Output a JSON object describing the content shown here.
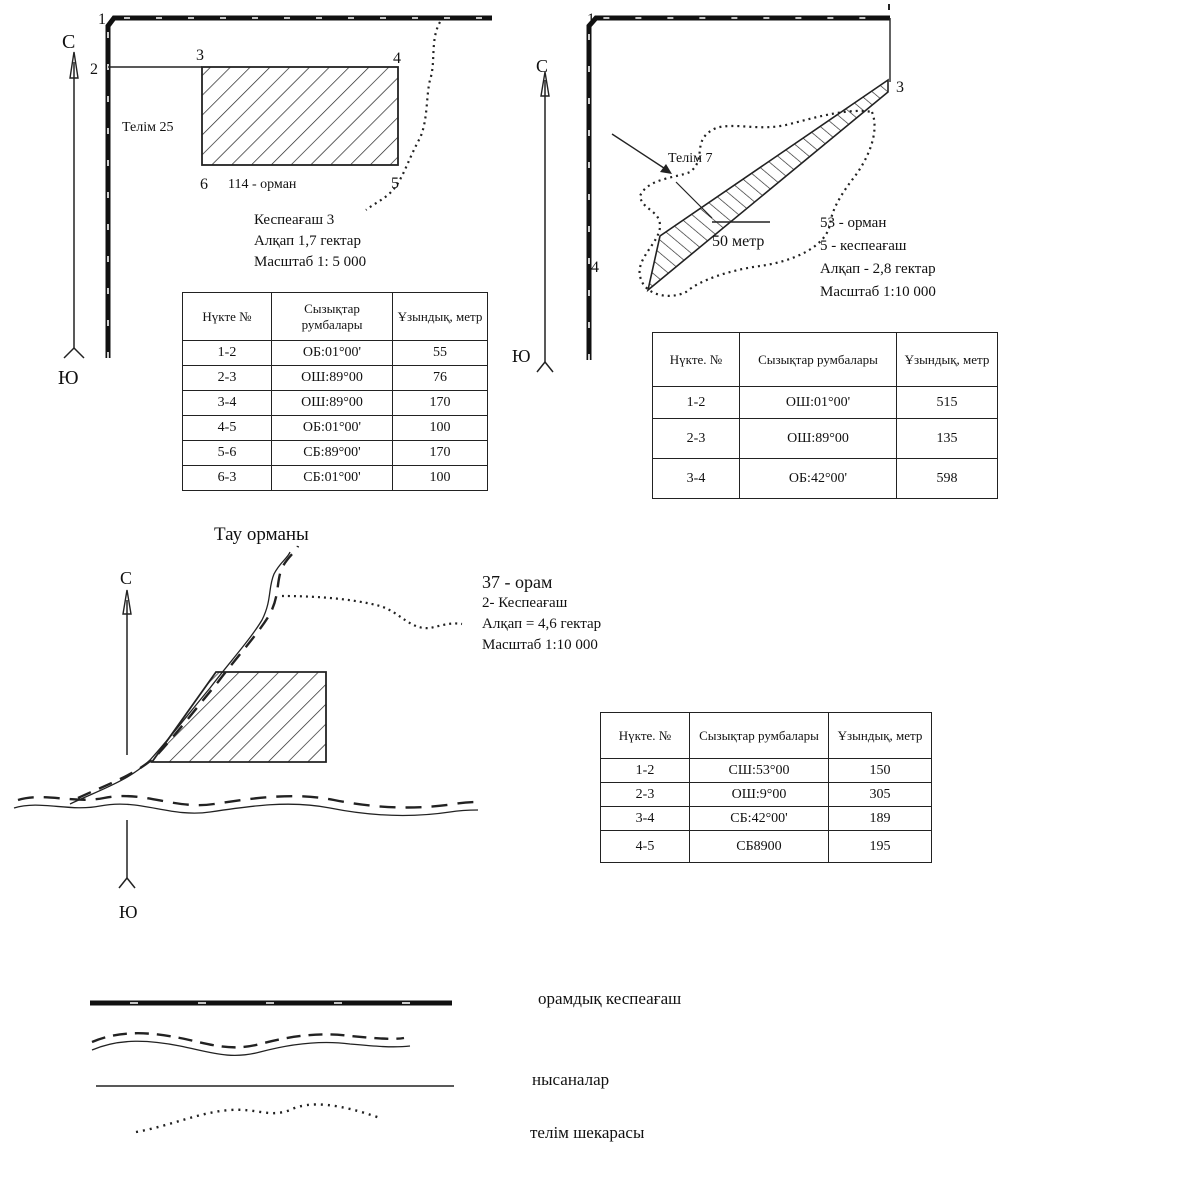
{
  "diagram1": {
    "points": [
      "1",
      "2",
      "3",
      "4",
      "5",
      "6"
    ],
    "north": "С",
    "south": "Ю",
    "plot_label": "Телім 25",
    "forest_label": "114 - орман",
    "info": [
      "Кеспеағаш 3",
      "Алқап 1,7 гектар",
      "Масштаб 1: 5 000"
    ],
    "table": {
      "headers": [
        "Нүкте №",
        "Сызықтар румбалары",
        "Ұзындық, метр"
      ],
      "rows": [
        [
          "1-2",
          "ОБ:01°00'",
          "55"
        ],
        [
          "2-3",
          "ОШ:89°00",
          "76"
        ],
        [
          "3-4",
          "ОШ:89°00",
          "170"
        ],
        [
          "4-5",
          "ОБ:01°00'",
          "100"
        ],
        [
          "5-6",
          "СБ:89°00'",
          "170"
        ],
        [
          "6-3",
          "СБ:01°00'",
          "100"
        ]
      ]
    }
  },
  "diagram2": {
    "points": [
      "1",
      "3",
      "4"
    ],
    "north": "С",
    "south": "Ю",
    "plot_label": "Телім 7",
    "distance_label": "50 метр",
    "info": [
      "53 - орман",
      "5 - кеспеағаш",
      "Алқап - 2,8 гектар",
      "Масштаб 1:10 000"
    ],
    "table": {
      "headers": [
        "Нүкте. №",
        "Сызықтар румбалары",
        "Ұзындық, метр"
      ],
      "rows": [
        [
          "1-2",
          "ОШ:01°00'",
          "515"
        ],
        [
          "2-3",
          "ОШ:89°00",
          "135"
        ],
        [
          "3-4",
          "ОБ:42°00'",
          "598"
        ]
      ]
    }
  },
  "diagram3": {
    "title": "Тау орманы",
    "north": "С",
    "south": "Ю",
    "info": [
      "37 - орам",
      "2- Кеспеағаш",
      "Алқап = 4,6 гектар",
      "Масштаб 1:10 000"
    ],
    "table": {
      "headers": [
        "Нүкте. №",
        "Сызықтар румбалары",
        "Ұзындық, метр"
      ],
      "rows": [
        [
          "1-2",
          "СШ:53°00",
          "150"
        ],
        [
          "2-3",
          "ОШ:9°00",
          "305"
        ],
        [
          "3-4",
          "СБ:42°00'",
          "189"
        ],
        [
          "4-5",
          "СБ8900",
          "195"
        ]
      ]
    }
  },
  "legend": [
    {
      "symbol": "dash-dot-line",
      "label": "орамдық кеспеағаш"
    },
    {
      "symbol": "double-wavy-line",
      "label": ""
    },
    {
      "symbol": "thin-line",
      "label": "нысаналар"
    },
    {
      "symbol": "dotted-line",
      "label": "телім шекарасы"
    }
  ]
}
